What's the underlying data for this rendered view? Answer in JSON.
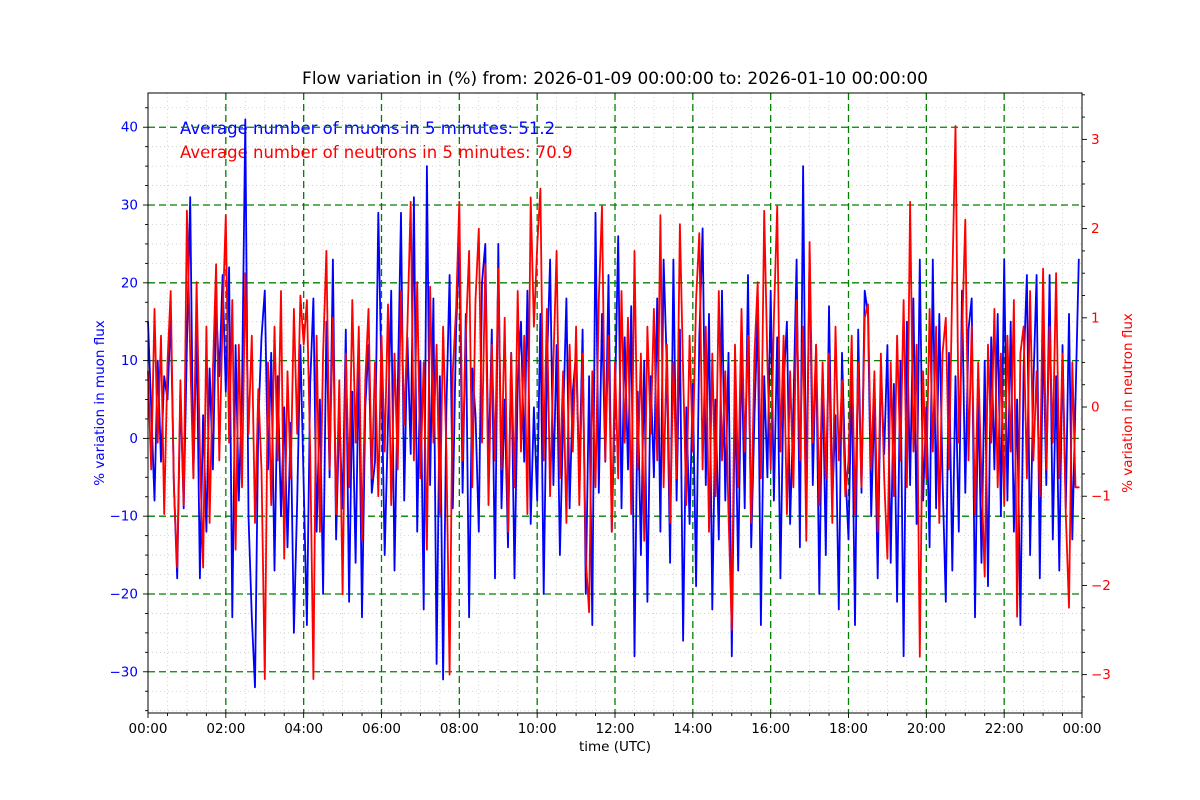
{
  "figure": {
    "background": "#ffffff"
  },
  "chart_data": {
    "type": "line",
    "title": "Flow variation in (%) from: 2026-01-09 00:00:00 to: 2026-01-10 00:00:00",
    "xlabel": "time (UTC)",
    "annotations": [
      {
        "text": "Average number of muons in 5 minutes: 51.2",
        "color": "#0000ff"
      },
      {
        "text": "Average number of neutrons in 5 minutes: 70.9",
        "color": "#ff0000"
      }
    ],
    "grid": {
      "major_color": "#008000",
      "major_style": "dashed",
      "minor_color": "#c9c9c9",
      "minor_style": "dotted",
      "major_on": true,
      "minor_on": true
    },
    "x_axis": {
      "label": "time (UTC)",
      "start_hour": 0,
      "end_hour": 24,
      "major_tick_hours": 2,
      "minor_tick_hours": 0.5,
      "ticks": [
        {
          "h": 0,
          "label": "00:00"
        },
        {
          "h": 2,
          "label": "02:00"
        },
        {
          "h": 4,
          "label": "04:00"
        },
        {
          "h": 6,
          "label": "06:00"
        },
        {
          "h": 8,
          "label": "08:00"
        },
        {
          "h": 10,
          "label": "10:00"
        },
        {
          "h": 12,
          "label": "12:00"
        },
        {
          "h": 14,
          "label": "14:00"
        },
        {
          "h": 16,
          "label": "16:00"
        },
        {
          "h": 18,
          "label": "18:00"
        },
        {
          "h": 20,
          "label": "20:00"
        },
        {
          "h": 22,
          "label": "22:00"
        },
        {
          "h": 24,
          "label": "00:00"
        }
      ]
    },
    "left_axis": {
      "label": "% variation in muon flux",
      "color": "#0000ff",
      "ylim": [
        -35.3,
        44.4
      ],
      "major_step": 10,
      "minor_step": 2.5,
      "ticks": [
        {
          "v": 40,
          "label": "40"
        },
        {
          "v": 30,
          "label": "30"
        },
        {
          "v": 20,
          "label": "20"
        },
        {
          "v": 10,
          "label": "10"
        },
        {
          "v": 0,
          "label": "0"
        },
        {
          "v": -10,
          "label": "−10"
        },
        {
          "v": -20,
          "label": "−20"
        },
        {
          "v": -30,
          "label": "−30"
        }
      ]
    },
    "right_axis": {
      "label": "% variation in neutron flux",
      "color": "#ff0000",
      "ylim": [
        -3.43,
        3.52
      ],
      "major_step": 1,
      "minor_step": 0.25,
      "ticks": [
        {
          "v": 3,
          "label": "3"
        },
        {
          "v": 2,
          "label": "2"
        },
        {
          "v": 1,
          "label": "1"
        },
        {
          "v": 0,
          "label": "0"
        },
        {
          "v": -1,
          "label": "−1"
        },
        {
          "v": -2,
          "label": "−2"
        },
        {
          "v": -3,
          "label": "−3"
        }
      ]
    },
    "series": [
      {
        "name": "muon flux % variation",
        "color": "#0000ff",
        "axis": "left",
        "interval_minutes": 5,
        "line_width": 1.8,
        "values": [
          15,
          4,
          -8,
          10,
          -3,
          8,
          5,
          16,
          -6,
          -18,
          6,
          -9,
          12,
          31,
          -5,
          14,
          -18,
          3,
          -12,
          9,
          -4,
          17,
          8,
          21,
          6,
          22,
          -23,
          12,
          -8,
          6,
          41,
          -10,
          -23,
          -32,
          2,
          13,
          19,
          -4,
          11,
          -17,
          8,
          -10,
          4,
          -14,
          2,
          -25,
          -8,
          12,
          -6,
          -24,
          7,
          18,
          -12,
          5,
          -20,
          15,
          -5,
          23,
          -13,
          3,
          -9,
          14,
          -21,
          6,
          -16,
          10,
          -23,
          4,
          12,
          -7,
          -3,
          29,
          8,
          -15,
          2,
          19,
          -17,
          6,
          29,
          -8,
          13,
          -2,
          31,
          -12,
          10,
          -22,
          35,
          -6,
          18,
          -29,
          8,
          -31,
          4,
          21,
          -9,
          14,
          25,
          -7,
          16,
          -23,
          9,
          3,
          -12,
          20,
          25,
          -4,
          14,
          -18,
          25,
          -9,
          5,
          -14,
          11,
          -18,
          7,
          15,
          -3,
          19,
          -11,
          4,
          -8,
          16,
          -20,
          9,
          23,
          -6,
          12,
          -15,
          2,
          18,
          -9,
          6,
          11,
          -5,
          14,
          -20,
          8,
          -24,
          29,
          -7,
          16,
          -3,
          21,
          -12,
          5,
          26,
          -9,
          13,
          -4,
          17,
          -28,
          6,
          -15,
          10,
          -21,
          8,
          -5,
          18,
          -12,
          23,
          9,
          -16,
          23,
          -8,
          14,
          -26,
          4,
          -11,
          7,
          -19,
          13,
          27,
          -6,
          16,
          -22,
          5,
          -13,
          19,
          -8,
          11,
          -28,
          6,
          -17,
          12,
          -9,
          21,
          -14,
          3,
          16,
          -24,
          8,
          -5,
          19,
          -8,
          13,
          -18,
          7,
          15,
          -11,
          4,
          23,
          -14,
          35,
          -9,
          24,
          -6,
          12,
          -20,
          9,
          -15,
          17,
          -8,
          3,
          -22,
          11,
          -4,
          -13,
          8,
          -24,
          14,
          -7,
          19,
          16,
          -10,
          5,
          -18,
          9,
          -2,
          12,
          -16,
          7,
          -21,
          10,
          -28,
          15,
          -6,
          18,
          -11,
          23,
          -8,
          4,
          -14,
          23,
          -9,
          16,
          -5,
          -21,
          11,
          -17,
          8,
          -12,
          19,
          -7,
          14,
          18,
          -23,
          6,
          -16,
          10,
          -19,
          13,
          -4,
          16,
          -10,
          23,
          -8,
          15,
          -12,
          5,
          -24,
          9,
          21,
          -15,
          7,
          21,
          -18,
          14,
          -6,
          21,
          -13,
          8,
          -17,
          12,
          -9,
          16,
          -13,
          5,
          23
        ]
      },
      {
        "name": "neutron flux % variation",
        "color": "#ff0000",
        "axis": "right",
        "interval_minutes": 5,
        "line_width": 1.8,
        "values": [
          0.4,
          -0.7,
          1.1,
          -0.4,
          0.8,
          -1.2,
          0.5,
          1.3,
          -0.9,
          -1.8,
          0.3,
          -1.1,
          2.2,
          0.6,
          -0.8,
          1.4,
          -0.5,
          -1.8,
          0.9,
          -1.3,
          0.4,
          1.6,
          -0.6,
          1.0,
          2.15,
          -0.4,
          1.2,
          -1.6,
          0.7,
          -0.9,
          1.5,
          -0.3,
          0.8,
          -1.3,
          0.2,
          -0.7,
          -3.05,
          0.5,
          -1.1,
          0.9,
          -0.6,
          1.3,
          -1.7,
          0.4,
          -0.8,
          1.1,
          -0.3,
          1.25,
          0.7,
          1.2,
          -0.5,
          -3.05,
          0.8,
          -1.4,
          0.6,
          1.75,
          -0.7,
          1.0,
          -1.2,
          0.3,
          -2.1,
          0.6,
          -0.9,
          1.2,
          -0.4,
          0.9,
          -1.5,
          0.3,
          1.1,
          -0.8,
          0.5,
          -1.0,
          0.8,
          -0.5,
          1.15,
          -1.1,
          0.6,
          -0.7,
          1.3,
          -0.2,
          0.9,
          2.3,
          -0.6,
          1.4,
          -0.8,
          0.5,
          -1.6,
          1.35,
          -0.4,
          0.7,
          -1.2,
          0.9,
          -0.5,
          -3.0,
          0.4,
          1.1,
          2.3,
          -0.6,
          0.8,
          1.75,
          -0.9,
          1.2,
          2.0,
          -0.4,
          1.6,
          -1.1,
          0.7,
          -0.6,
          1.55,
          -0.7,
          1.0,
          -1.4,
          0.6,
          -0.9,
          1.3,
          -0.5,
          0.8,
          -1.2,
          2.35,
          0.9,
          1.8,
          2.45,
          -0.6,
          1.1,
          -1.0,
          0.5,
          1.75,
          -0.8,
          0.4,
          -1.3,
          0.7,
          -0.5,
          0.9,
          -1.1,
          0.6,
          -1.7,
          -2.3,
          0.4,
          -0.9,
          1.2,
          2.25,
          -0.6,
          0.8,
          -1.4,
          0.5,
          -0.8,
          1.3,
          -0.4,
          1.0,
          -1.2,
          1.75,
          -0.7,
          0.6,
          -1.5,
          0.9,
          -0.3,
          1.1,
          -0.6,
          2.15,
          -0.9,
          0.7,
          -1.3,
          0.5,
          -0.8,
          2.05,
          0.4,
          -1.1,
          0.8,
          -0.5,
          1.2,
          1.95,
          -0.7,
          0.9,
          -1.4,
          0.6,
          -1.0,
          1.3,
          -0.6,
          0.4,
          -1.2,
          -2.5,
          0.7,
          -0.9,
          1.1,
          -0.5,
          0.8,
          -1.3,
          0.6,
          1.4,
          -0.8,
          2.2,
          0.5,
          -0.7,
          1.0,
          2.25,
          -0.5,
          0.8,
          -1.2,
          0.4,
          -0.9,
          1.2,
          -0.6,
          0.9,
          -1.5,
          1.85,
          -0.4,
          0.7,
          -1.1,
          0.5,
          -0.8,
          0.6,
          -1.3,
          0.9,
          -0.6,
          0.3,
          -1.0,
          -0.6,
          0.8,
          -1.2,
          0.5,
          -0.9,
          1.0,
          1.15,
          -0.7,
          0.4,
          -1.4,
          0.6,
          -0.8,
          -1.7,
          0.5,
          -1.0,
          0.8,
          -0.6,
          1.2,
          -0.9,
          2.3,
          -0.5,
          0.7,
          -2.8,
          0.4,
          -0.8,
          1.1,
          -0.5,
          0.9,
          -1.3,
          0.6,
          1.0,
          -0.7,
          1.4,
          3.15,
          -0.4,
          0.8,
          2.1,
          -0.6,
          0.9,
          -1.2,
          0.5,
          -0.8,
          -1.9,
          0.7,
          -0.4,
          1.1,
          -0.9,
          0.6,
          -1.1,
          0.8,
          -0.5,
          1.2,
          -2.35,
          0.6,
          0.9,
          -0.8,
          1.3,
          -0.6,
          0.4,
          -1.0,
          1.55,
          -0.7,
          0.9,
          -0.4,
          1.5,
          -0.8,
          0.6,
          -1.2,
          -2.25,
          0.5,
          -0.9,
          -0.9
        ]
      }
    ]
  }
}
